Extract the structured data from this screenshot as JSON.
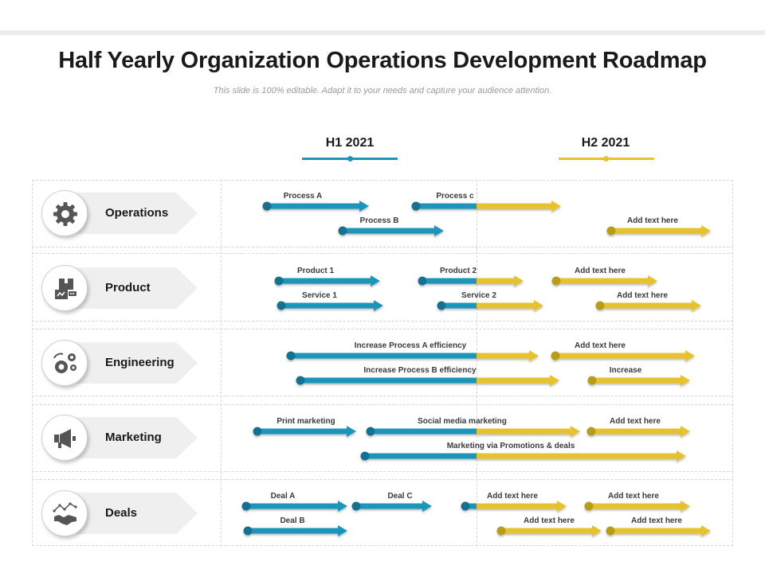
{
  "title": "Half Yearly Organization Operations Development Roadmap",
  "subtitle": "This slide is 100% editable. Adapt it to your needs and capture your audience attention.",
  "periods": [
    {
      "label": "H1 2021",
      "color": "#1f95bb"
    },
    {
      "label": "H2 2021",
      "color": "#e6c32e"
    }
  ],
  "rows": [
    {
      "label": "Operations",
      "icon": "gear-icon"
    },
    {
      "label": "Product",
      "icon": "product-box-icon"
    },
    {
      "label": "Engineering",
      "icon": "engineering-gears-icon"
    },
    {
      "label": "Marketing",
      "icon": "megaphone-icon"
    },
    {
      "label": "Deals",
      "icon": "handshake-chart-icon"
    }
  ],
  "tasks": [
    {
      "label": "Process A"
    },
    {
      "label": "Process c"
    },
    {
      "label": "Process B"
    },
    {
      "label": "Add text here"
    },
    {
      "label": "Product 1"
    },
    {
      "label": "Product 2"
    },
    {
      "label": "Add text here"
    },
    {
      "label": "Service 1"
    },
    {
      "label": "Service 2"
    },
    {
      "label": "Add text here"
    },
    {
      "label": "Increase Process A efficiency"
    },
    {
      "label": "Add text here"
    },
    {
      "label": "Increase Process B efficiency"
    },
    {
      "label": "Increase"
    },
    {
      "label": "Print marketing"
    },
    {
      "label": "Social media marketing"
    },
    {
      "label": "Add text here"
    },
    {
      "label": "Marketing via Promotions & deals"
    },
    {
      "label": "Deal A"
    },
    {
      "label": "Deal C"
    },
    {
      "label": "Add text here"
    },
    {
      "label": "Add text here"
    },
    {
      "label": "Deal B"
    },
    {
      "label": "Add text here"
    },
    {
      "label": "Add text here"
    }
  ]
}
